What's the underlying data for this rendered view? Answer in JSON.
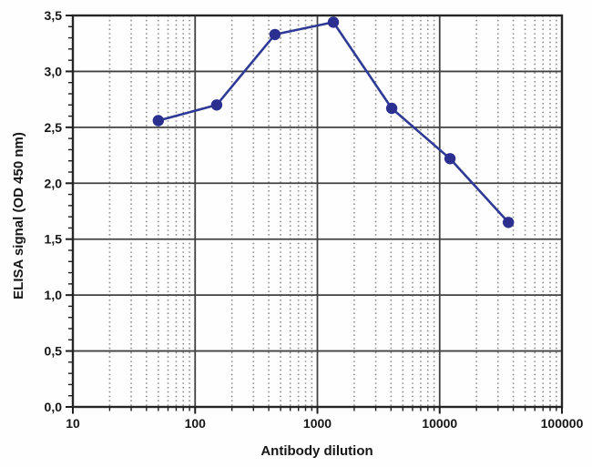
{
  "chart_data": {
    "type": "line",
    "title": "",
    "xlabel": "Antibody dilution",
    "ylabel": "ELISA signal (OD 450 nm)",
    "x_scale": "log",
    "xlim": [
      10,
      100000
    ],
    "ylim": [
      0,
      3.5
    ],
    "x_ticks": [
      10,
      100,
      1000,
      10000,
      100000
    ],
    "x_tick_labels": [
      "10",
      "100",
      "1000",
      "10000",
      "100000"
    ],
    "y_ticks": [
      0,
      0.5,
      1.0,
      1.5,
      2.0,
      2.5,
      3.0,
      3.5
    ],
    "y_tick_labels": [
      "0,0",
      "0,5",
      "1,0",
      "1,5",
      "2,0",
      "2,5",
      "3,0",
      "3,5"
    ],
    "y_minor_step": 0.1,
    "grid": {
      "horizontal_major": true,
      "vertical_major": true,
      "vertical_minor_dotted": true,
      "horizontal_minor": false
    },
    "legend": "none",
    "series": [
      {
        "name": "ELISA signal",
        "marker": "circle",
        "x": [
          50,
          150,
          450,
          1350,
          4050,
          12150,
          36450
        ],
        "y": [
          2.56,
          2.7,
          3.33,
          3.44,
          2.67,
          2.22,
          1.65
        ]
      }
    ]
  },
  "theme": {
    "series_line": "#2e3a96",
    "series_marker": "#2b3090",
    "frame": "#262626",
    "grid_major": "#414141",
    "grid_minor": "#8f8f8f",
    "tick": "#1f1f1f",
    "text": "#161616",
    "background": "#fefefe"
  }
}
